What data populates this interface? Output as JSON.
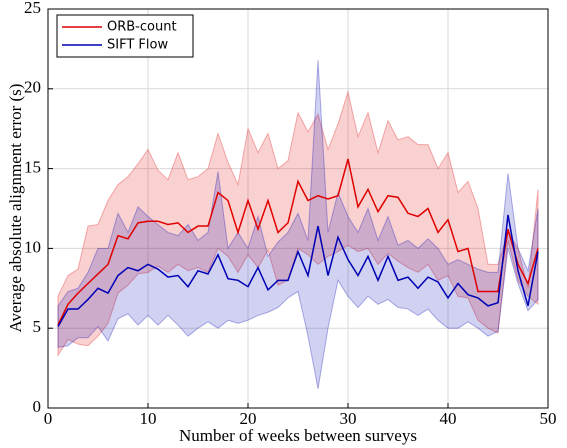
{
  "chart_data": {
    "type": "line",
    "xlabel": "Number of weeks between surveys",
    "ylabel": "Average absolute alignment error (s)",
    "x": [
      1,
      2,
      3,
      4,
      5,
      6,
      7,
      8,
      9,
      10,
      11,
      12,
      13,
      14,
      15,
      16,
      17,
      18,
      19,
      20,
      21,
      22,
      23,
      24,
      25,
      26,
      27,
      28,
      29,
      30,
      31,
      32,
      33,
      34,
      35,
      36,
      37,
      38,
      39,
      40,
      41,
      42,
      43,
      44,
      45,
      46,
      47,
      48,
      49
    ],
    "xlim": [
      0,
      50
    ],
    "xticks": [
      0,
      10,
      20,
      30,
      40,
      50
    ],
    "ylim": [
      0,
      25
    ],
    "yticks": [
      0,
      5,
      10,
      15,
      20,
      25
    ],
    "grid": true,
    "legend": "upper left",
    "series": [
      {
        "name": "ORB-count",
        "color": "#e00000",
        "values": [
          5.2,
          6.5,
          7.2,
          7.8,
          8.4,
          9.0,
          10.8,
          10.6,
          11.6,
          11.7,
          11.7,
          11.5,
          11.6,
          11.0,
          11.4,
          11.4,
          13.5,
          13.0,
          11.0,
          13.0,
          11.2,
          13.0,
          11.0,
          11.6,
          14.2,
          13.0,
          13.3,
          13.1,
          13.3,
          15.6,
          12.6,
          13.7,
          12.3,
          13.3,
          13.2,
          12.2,
          12.0,
          12.5,
          11.0,
          11.8,
          9.8,
          10.0,
          7.3,
          7.3,
          7.3,
          11.2,
          9.0,
          7.8,
          10.0
        ],
        "upper": [
          7.0,
          8.3,
          8.7,
          11.4,
          11.5,
          13.0,
          14.0,
          14.5,
          15.3,
          16.2,
          14.9,
          14.3,
          16.0,
          14.3,
          14.5,
          15.0,
          17.2,
          15.4,
          14.0,
          17.5,
          16.0,
          17.2,
          15.0,
          15.5,
          18.5,
          17.3,
          18.4,
          16.2,
          17.8,
          19.8,
          17.0,
          18.5,
          16.0,
          18.0,
          16.8,
          17.0,
          16.5,
          16.5,
          15.0,
          16.0,
          13.5,
          14.2,
          12.5,
          9.0,
          9.0,
          11.0,
          10.0,
          7.5,
          13.7
        ],
        "lower": [
          3.3,
          4.3,
          4.0,
          3.9,
          4.5,
          5.3,
          7.2,
          7.7,
          8.4,
          8.5,
          8.9,
          8.5,
          9.0,
          8.6,
          8.8,
          8.5,
          10.0,
          9.5,
          8.5,
          9.6,
          8.8,
          9.9,
          7.7,
          8.0,
          10.0,
          9.6,
          9.0,
          9.5,
          9.8,
          10.2,
          9.8,
          10.0,
          9.0,
          9.7,
          9.2,
          8.8,
          8.5,
          9.0,
          8.0,
          8.3,
          7.0,
          6.9,
          5.5,
          5.0,
          4.7,
          10.5,
          8.0,
          7.0,
          6.5
        ]
      },
      {
        "name": "SIFT Flow",
        "color": "#0000b4",
        "values": [
          5.1,
          6.2,
          6.2,
          6.8,
          7.5,
          7.2,
          8.3,
          8.8,
          8.6,
          9.0,
          8.7,
          8.2,
          8.3,
          7.6,
          8.6,
          8.4,
          9.6,
          8.1,
          8.0,
          7.6,
          8.8,
          7.4,
          8.0,
          8.0,
          9.8,
          8.3,
          11.4,
          8.3,
          10.7,
          9.3,
          8.3,
          9.5,
          8.0,
          9.5,
          8.0,
          8.2,
          7.5,
          8.2,
          7.9,
          6.9,
          7.8,
          7.1,
          6.9,
          6.4,
          6.6,
          12.1,
          8.6,
          6.4,
          9.8
        ],
        "upper": [
          6.4,
          7.3,
          7.5,
          8.5,
          10.0,
          10.0,
          12.2,
          11.0,
          12.6,
          12.0,
          11.5,
          11.0,
          10.8,
          11.5,
          10.5,
          11.0,
          14.8,
          10.0,
          11.0,
          10.0,
          12.0,
          9.5,
          10.4,
          11.0,
          12.2,
          10.5,
          21.8,
          11.0,
          13.5,
          12.0,
          11.0,
          12.5,
          10.5,
          12.0,
          10.2,
          10.5,
          10.0,
          10.6,
          10.0,
          9.0,
          9.3,
          9.0,
          8.7,
          8.5,
          8.5,
          14.7,
          10.0,
          8.6,
          12.5
        ],
        "lower": [
          3.8,
          3.9,
          4.4,
          4.4,
          5.1,
          4.2,
          5.6,
          5.9,
          5.2,
          5.8,
          5.2,
          5.8,
          5.2,
          4.5,
          5.0,
          5.4,
          5.0,
          5.5,
          5.3,
          5.5,
          5.8,
          6.0,
          6.3,
          6.9,
          7.3,
          4.5,
          1.2,
          5.0,
          8.0,
          7.0,
          6.3,
          7.0,
          6.5,
          6.8,
          6.3,
          6.2,
          5.8,
          6.2,
          5.5,
          5.0,
          5.0,
          5.4,
          5.0,
          4.5,
          4.8,
          10.0,
          7.8,
          6.1,
          6.8
        ]
      }
    ]
  }
}
